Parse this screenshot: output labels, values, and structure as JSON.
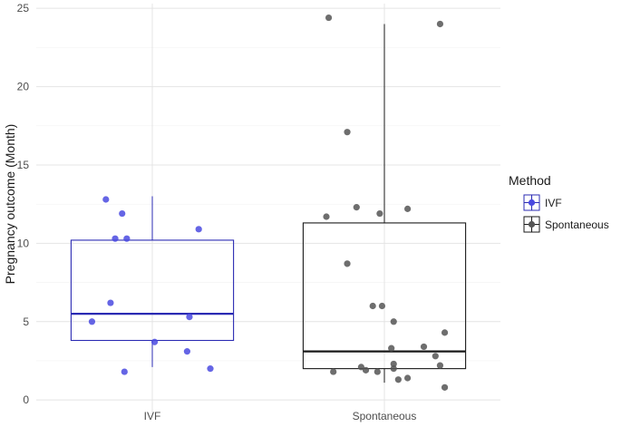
{
  "chart_data": {
    "type": "box",
    "categories": [
      "IVF",
      "Spontaneous"
    ],
    "xlabel": "",
    "ylabel": "Pregnancy outcome (Month)",
    "ylim": [
      -0.8,
      25.3
    ],
    "yticks": [
      0,
      5,
      10,
      15,
      20,
      25
    ],
    "grid": true,
    "legend": {
      "title": "Method",
      "position": "right",
      "entries": [
        {
          "label": "IVF",
          "color": "#2b2bb3"
        },
        {
          "label": "Spontaneous",
          "color": "#1a1a1a"
        }
      ]
    },
    "boxes": [
      {
        "name": "IVF",
        "color": "#2b2bb3",
        "point_color": "#4a4ae0",
        "whisker_low": 2.1,
        "q1": 3.8,
        "median": 5.5,
        "q3": 10.2,
        "whisker_high": 13.0
      },
      {
        "name": "Spontaneous",
        "color": "#1a1a1a",
        "point_color": "#555555",
        "whisker_low": 1.1,
        "q1": 2.0,
        "median": 3.1,
        "q3": 11.3,
        "whisker_high": 24.0
      }
    ],
    "points": [
      {
        "group": "IVF",
        "jitter": -0.2,
        "y": 12.8
      },
      {
        "group": "IVF",
        "jitter": -0.13,
        "y": 11.9
      },
      {
        "group": "IVF",
        "jitter": -0.16,
        "y": 10.3
      },
      {
        "group": "IVF",
        "jitter": -0.11,
        "y": 10.3
      },
      {
        "group": "IVF",
        "jitter": 0.2,
        "y": 10.9
      },
      {
        "group": "IVF",
        "jitter": -0.18,
        "y": 6.2
      },
      {
        "group": "IVF",
        "jitter": -0.26,
        "y": 5.0
      },
      {
        "group": "IVF",
        "jitter": 0.16,
        "y": 5.3
      },
      {
        "group": "IVF",
        "jitter": 0.01,
        "y": 3.7
      },
      {
        "group": "IVF",
        "jitter": 0.15,
        "y": 3.1
      },
      {
        "group": "IVF",
        "jitter": -0.12,
        "y": 1.8
      },
      {
        "group": "IVF",
        "jitter": 0.25,
        "y": 2.0
      },
      {
        "group": "Spontaneous",
        "jitter": -0.24,
        "y": 24.4
      },
      {
        "group": "Spontaneous",
        "jitter": 0.24,
        "y": 24.0
      },
      {
        "group": "Spontaneous",
        "jitter": -0.16,
        "y": 17.1
      },
      {
        "group": "Spontaneous",
        "jitter": -0.12,
        "y": 12.3
      },
      {
        "group": "Spontaneous",
        "jitter": 0.1,
        "y": 12.2
      },
      {
        "group": "Spontaneous",
        "jitter": -0.25,
        "y": 11.7
      },
      {
        "group": "Spontaneous",
        "jitter": -0.02,
        "y": 11.9
      },
      {
        "group": "Spontaneous",
        "jitter": -0.16,
        "y": 8.7
      },
      {
        "group": "Spontaneous",
        "jitter": -0.05,
        "y": 6.0
      },
      {
        "group": "Spontaneous",
        "jitter": -0.01,
        "y": 6.0
      },
      {
        "group": "Spontaneous",
        "jitter": 0.04,
        "y": 5.0
      },
      {
        "group": "Spontaneous",
        "jitter": 0.26,
        "y": 4.3
      },
      {
        "group": "Spontaneous",
        "jitter": 0.17,
        "y": 3.4
      },
      {
        "group": "Spontaneous",
        "jitter": 0.03,
        "y": 3.3
      },
      {
        "group": "Spontaneous",
        "jitter": 0.22,
        "y": 2.8
      },
      {
        "group": "Spontaneous",
        "jitter": 0.24,
        "y": 2.2
      },
      {
        "group": "Spontaneous",
        "jitter": 0.04,
        "y": 2.3
      },
      {
        "group": "Spontaneous",
        "jitter": -0.1,
        "y": 2.1
      },
      {
        "group": "Spontaneous",
        "jitter": 0.04,
        "y": 2.0
      },
      {
        "group": "Spontaneous",
        "jitter": -0.08,
        "y": 1.9
      },
      {
        "group": "Spontaneous",
        "jitter": -0.22,
        "y": 1.8
      },
      {
        "group": "Spontaneous",
        "jitter": -0.03,
        "y": 1.8
      },
      {
        "group": "Spontaneous",
        "jitter": 0.1,
        "y": 1.4
      },
      {
        "group": "Spontaneous",
        "jitter": 0.06,
        "y": 1.3
      },
      {
        "group": "Spontaneous",
        "jitter": 0.26,
        "y": 0.8
      }
    ]
  }
}
